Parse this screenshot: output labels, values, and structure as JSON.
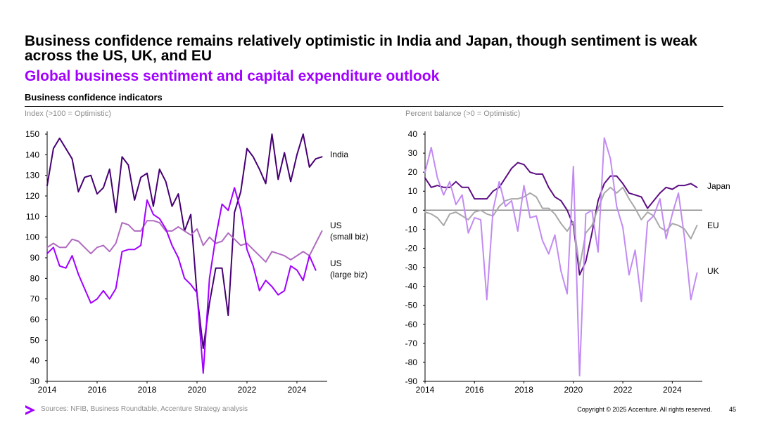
{
  "title": "Business confidence remains relatively optimistic in India and Japan, though sentiment is weak across the US, UK, and EU",
  "subtitle": "Global business sentiment and capital expenditure outlook",
  "section_title": "Business confidence indicators",
  "footer": {
    "source": "Sources: NFIB, Business Roundtable, Accenture Strategy analysis",
    "copyright": "Copyright © 2025 Accenture. All rights reserved.",
    "page": "45"
  },
  "colors": {
    "india": "#460073",
    "us_small": "#B06BC0",
    "us_large": "#A100FF",
    "japan": "#5C0D83",
    "eu": "#A8A8A8",
    "uk": "#C28BF2",
    "zero_line": "#8C8C8C",
    "accent": "#A100FF"
  },
  "chart_data": [
    {
      "type": "line",
      "unit_label": "Index (>100 = Optimistic)",
      "x_ticks": [
        "2014",
        "2016",
        "2018",
        "2020",
        "2022",
        "2024"
      ],
      "y_ticks": [
        "30",
        "40",
        "50",
        "60",
        "70",
        "80",
        "90",
        "100",
        "110",
        "120",
        "130",
        "140",
        "150"
      ],
      "xlim": [
        2014,
        2025.1
      ],
      "ylim": [
        30,
        150
      ],
      "series": [
        {
          "name": "India",
          "label_lines": [
            "India"
          ],
          "color_key": "india",
          "x_start": 2014,
          "step": 0.25,
          "values": [
            125,
            143,
            148,
            143,
            138,
            122,
            129,
            130,
            121,
            124,
            133,
            112,
            139,
            135,
            118,
            129,
            131,
            115,
            133,
            127,
            115,
            121,
            103,
            111,
            72,
            46,
            68,
            85,
            85,
            62,
            112,
            122,
            143,
            139,
            133,
            126,
            150,
            128,
            141,
            127,
            140,
            150,
            134,
            138,
            139
          ]
        },
        {
          "name": "US (small biz)",
          "label_lines": [
            "US",
            "(small biz)"
          ],
          "color_key": "us_small",
          "x_start": 2014,
          "step": 0.25,
          "values": [
            95,
            97,
            95,
            95,
            99,
            98,
            95,
            92,
            95,
            96,
            93,
            97,
            107,
            106,
            103,
            103,
            108,
            108,
            107,
            103,
            103,
            105,
            103,
            101,
            104,
            96,
            100,
            97,
            98,
            102,
            99,
            96,
            97,
            94,
            91,
            88,
            93,
            92,
            91,
            89,
            91,
            93,
            91,
            97,
            103
          ]
        },
        {
          "name": "US (large biz)",
          "label_lines": [
            "US",
            "(large biz)"
          ],
          "color_key": "us_large",
          "x_start": 2014,
          "step": 0.25,
          "values": [
            92,
            95,
            86,
            85,
            91,
            82,
            75,
            68,
            70,
            74,
            70,
            75,
            93,
            94,
            94,
            96,
            118,
            111,
            109,
            104,
            96,
            90,
            80,
            77,
            73,
            34,
            80,
            100,
            116,
            113,
            124,
            113,
            94,
            86,
            74,
            79,
            76,
            72,
            74,
            86,
            84,
            79,
            91,
            84
          ]
        }
      ]
    },
    {
      "type": "line",
      "unit_label": "Percent balance (>0 = Optimistic)",
      "x_ticks": [
        "2014",
        "2016",
        "2018",
        "2020",
        "2022",
        "2024"
      ],
      "y_ticks": [
        "40",
        "30",
        "20",
        "10",
        "0",
        "-10",
        "-20",
        "-30",
        "-40",
        "-50",
        "-60",
        "-70",
        "-80",
        "-90"
      ],
      "xlim": [
        2014,
        2025.1
      ],
      "ylim": [
        -90,
        40
      ],
      "series": [
        {
          "name": "Japan",
          "label_lines": [
            "Japan"
          ],
          "color_key": "japan",
          "x_start": 2014,
          "step": 0.25,
          "values": [
            17,
            12,
            13,
            12,
            12,
            15,
            12,
            12,
            6,
            6,
            6,
            10,
            12,
            17,
            22,
            25,
            24,
            20,
            19,
            19,
            12,
            7,
            5,
            0,
            -8,
            -34,
            -27,
            -12,
            5,
            14,
            18,
            18,
            14,
            9,
            8,
            7,
            1,
            5,
            9,
            12,
            11,
            13,
            13,
            14,
            12
          ]
        },
        {
          "name": "EU",
          "label_lines": [
            "EU"
          ],
          "color_key": "eu",
          "x_start": 2014,
          "step": 0.25,
          "values": [
            -1,
            -2,
            -4,
            -8,
            -2,
            -1,
            -3,
            -5,
            -1,
            0,
            -2,
            -3,
            2,
            5,
            6,
            6,
            7,
            9,
            7,
            1,
            1,
            -2,
            -7,
            -11,
            -6,
            -30,
            -12,
            -8,
            1,
            9,
            12,
            9,
            12,
            6,
            1,
            -5,
            -1,
            -3,
            -9,
            -11,
            -7,
            -8,
            -10,
            -15,
            -8
          ]
        },
        {
          "name": "UK",
          "label_lines": [
            "UK"
          ],
          "color_key": "uk",
          "x_start": 2014,
          "step": 0.25,
          "values": [
            20,
            33,
            17,
            8,
            15,
            3,
            8,
            -12,
            -4,
            -5,
            -47,
            0,
            15,
            2,
            5,
            -11,
            13,
            -4,
            -3,
            -16,
            -23,
            -13,
            -32,
            -44,
            23,
            -87,
            -2,
            0,
            -22,
            38,
            27,
            2,
            -9,
            -34,
            -21,
            -48,
            -6,
            -3,
            6,
            -15,
            -2,
            9,
            -15,
            -47,
            -33
          ]
        }
      ]
    }
  ]
}
